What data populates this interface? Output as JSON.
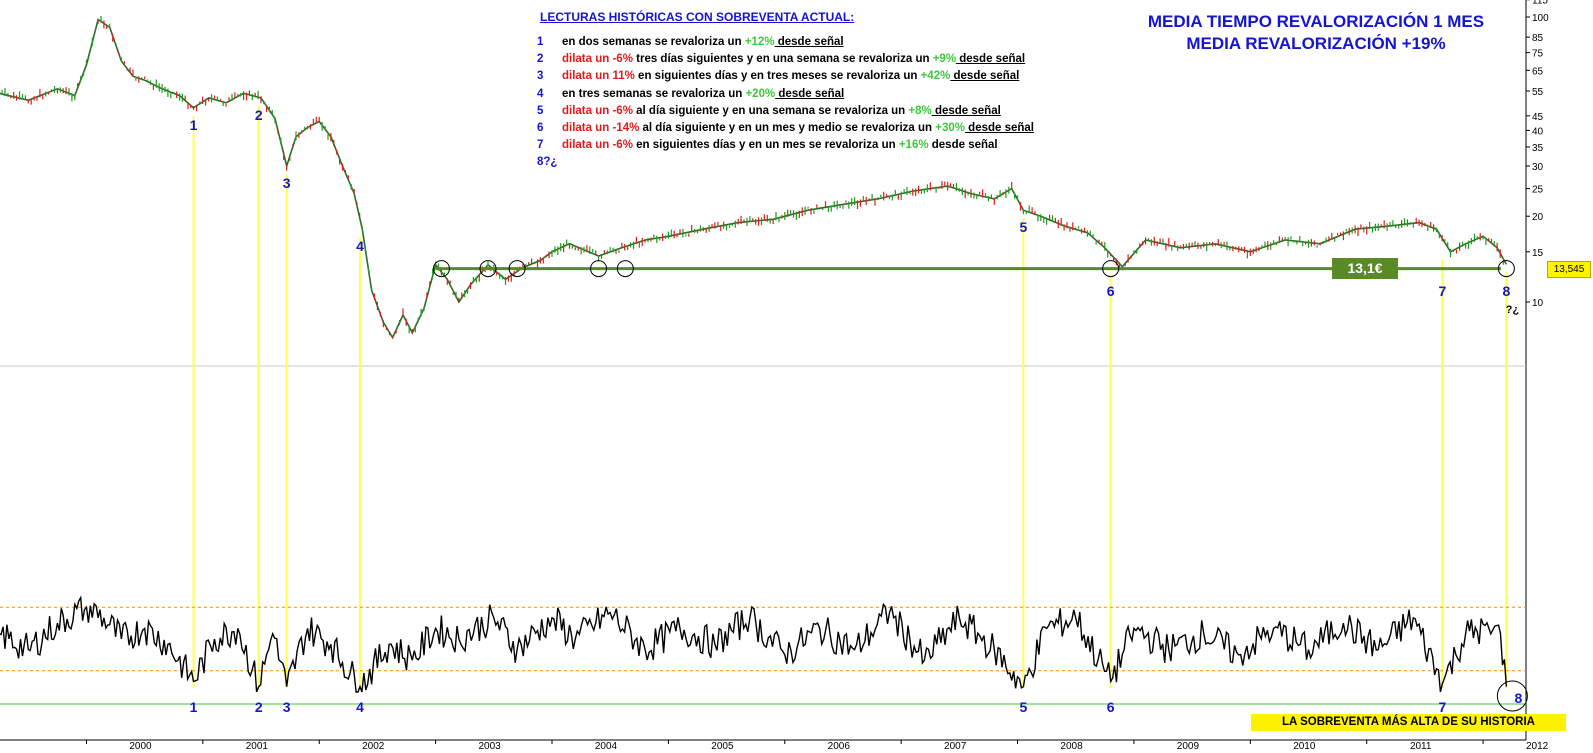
{
  "header": {
    "title_line1": "MEDIA TIEMPO REVALORIZACIÓN 1 MES",
    "title_line2": "MEDIA REVALORIZACIÓN +19%"
  },
  "readings": {
    "title": "LECTURAS HISTÓRICAS CON SOBREVENTA ACTUAL:",
    "items": [
      {
        "num": "1",
        "parts": [
          {
            "text": "en dos semanas se revaloriza un ",
            "style": "black"
          },
          {
            "text": "+12%",
            "style": "green"
          },
          {
            "text": " desde señal",
            "style": "underline"
          }
        ]
      },
      {
        "num": "2",
        "parts": [
          {
            "text": "dilata un -6%",
            "style": "red"
          },
          {
            "text": " tres días siguientes y en una semana se revaloriza un ",
            "style": "black"
          },
          {
            "text": "+9%",
            "style": "green"
          },
          {
            "text": " desde señal",
            "style": "underline"
          }
        ]
      },
      {
        "num": "3",
        "parts": [
          {
            "text": "dilata un 11%",
            "style": "red"
          },
          {
            "text": " en siguientes días y en tres meses se revaloriza un ",
            "style": "black"
          },
          {
            "text": "+42%",
            "style": "green"
          },
          {
            "text": " desde señal",
            "style": "underline"
          }
        ]
      },
      {
        "num": "4",
        "parts": [
          {
            "text": "en tres semanas se revaloriza un ",
            "style": "black"
          },
          {
            "text": "+20%",
            "style": "green"
          },
          {
            "text": " desde señal",
            "style": "underline"
          }
        ]
      },
      {
        "num": "5",
        "parts": [
          {
            "text": "dilata un -6%",
            "style": "red"
          },
          {
            "text": " al día siguiente y en una semana se revaloriza un ",
            "style": "black"
          },
          {
            "text": "+8%",
            "style": "green"
          },
          {
            "text": " desde señal",
            "style": "underline"
          }
        ]
      },
      {
        "num": "6",
        "parts": [
          {
            "text": "dilata un -14%",
            "style": "red"
          },
          {
            "text": " al día siguiente y en un mes y medio se revaloriza un ",
            "style": "black"
          },
          {
            "text": "+30%",
            "style": "green"
          },
          {
            "text": " desde señal",
            "style": "underline"
          }
        ]
      },
      {
        "num": "7",
        "parts": [
          {
            "text": "dilata un -6%",
            "style": "red"
          },
          {
            "text": " en siguientes días y en un mes se revaloriza un ",
            "style": "black"
          },
          {
            "text": "+16%",
            "style": "green"
          },
          {
            "text": " desde señal",
            "style": "black"
          }
        ]
      },
      {
        "num": "8?¿",
        "parts": []
      }
    ]
  },
  "support": {
    "label": "13,1€",
    "value": 13.1
  },
  "last_price": {
    "label": "13,545",
    "value": 13.545
  },
  "bottom_banner": "LA SOBREVENTA MÁS ALTA DE SU HISTORIA",
  "signal_question": "?¿",
  "colors": {
    "signal_number": "#1414d2",
    "signal_line": "#ffff50",
    "support_line": "#5a8a25",
    "oscillator_band": "#ff8c00",
    "oscillator_base": "#3cc93c",
    "candle_up": "#1e9b1e",
    "candle_down": "#dc1e1e"
  },
  "chart_data": [
    {
      "type": "line",
      "scale": "log",
      "ylim": [
        6,
        115
      ],
      "y_ticks": [
        10,
        15,
        20,
        25,
        30,
        35,
        40,
        45,
        55,
        65,
        75,
        85,
        100,
        115
      ],
      "x_ticks": [
        "2000",
        "2001",
        "2002",
        "2003",
        "2004",
        "2005",
        "2006",
        "2007",
        "2008",
        "2009",
        "2010",
        "2011",
        "2012"
      ],
      "x": [
        1999.25,
        1999.5,
        1999.75,
        1999.9,
        2000.0,
        2000.1,
        2000.2,
        2000.3,
        2000.4,
        2000.5,
        2000.65,
        2000.8,
        2000.92,
        2001.05,
        2001.2,
        2001.35,
        2001.5,
        2001.62,
        2001.72,
        2001.8,
        2001.9,
        2002.0,
        2002.1,
        2002.2,
        2002.3,
        2002.37,
        2002.45,
        2002.55,
        2002.63,
        2002.72,
        2002.8,
        2002.9,
        2003.0,
        2003.1,
        2003.2,
        2003.3,
        2003.45,
        2003.6,
        2003.75,
        2003.9,
        2004.0,
        2004.15,
        2004.4,
        2004.6,
        2004.8,
        2005.0,
        2005.3,
        2005.6,
        2005.9,
        2006.2,
        2006.5,
        2006.8,
        2007.1,
        2007.4,
        2007.6,
        2007.8,
        2007.95,
        2008.05,
        2008.2,
        2008.4,
        2008.6,
        2008.75,
        2008.9,
        2009.1,
        2009.4,
        2009.7,
        2010.0,
        2010.3,
        2010.6,
        2010.9,
        2011.2,
        2011.45,
        2011.6,
        2011.72,
        2011.85,
        2012.0,
        2012.12,
        2012.2
      ],
      "y": [
        54,
        51,
        56,
        53,
        68,
        98,
        92,
        70,
        62,
        60,
        56,
        53,
        48,
        52,
        50,
        54,
        52,
        44,
        30,
        38,
        41,
        43,
        38,
        30,
        24,
        18,
        11,
        8.5,
        7.5,
        9,
        7.8,
        9.5,
        13.5,
        12,
        10,
        11.5,
        13.5,
        12,
        13.2,
        14,
        15,
        16,
        14.5,
        15.5,
        16.5,
        17,
        18,
        19,
        19.5,
        21,
        22,
        23,
        24.5,
        25.5,
        24,
        23,
        25,
        21,
        20,
        18.5,
        17.5,
        15.5,
        13.3,
        16.5,
        15.5,
        16,
        15,
        16.5,
        16,
        18,
        18.5,
        19,
        18,
        15,
        16,
        17,
        15.5,
        13.545
      ],
      "annotations": [
        {
          "label": "1",
          "x": 2000.92
        },
        {
          "label": "2",
          "x": 2001.48
        },
        {
          "label": "3",
          "x": 2001.72
        },
        {
          "label": "4",
          "x": 2002.35
        },
        {
          "label": "5",
          "x": 2008.05
        },
        {
          "label": "6",
          "x": 2008.8
        },
        {
          "label": "7",
          "x": 2011.65
        },
        {
          "label": "8",
          "x": 2012.2
        }
      ],
      "circles_x": [
        2003.05,
        2003.45,
        2003.7,
        2004.4,
        2004.63,
        2008.8,
        2012.2
      ],
      "hline": 13.1
    },
    {
      "type": "line",
      "ylim": [
        0,
        100
      ],
      "bands": [
        80,
        20
      ],
      "x": [
        1999.25,
        1999.5,
        1999.75,
        2000.0,
        2000.15,
        2000.3,
        2000.5,
        2000.7,
        2000.92,
        2001.1,
        2001.3,
        2001.48,
        2001.6,
        2001.72,
        2001.9,
        2002.1,
        2002.35,
        2002.6,
        2002.8,
        2003.0,
        2003.2,
        2003.5,
        2003.7,
        2004.0,
        2004.2,
        2004.5,
        2004.8,
        2005.1,
        2005.4,
        2005.7,
        2006.0,
        2006.3,
        2006.6,
        2006.9,
        2007.2,
        2007.5,
        2007.8,
        2008.05,
        2008.25,
        2008.5,
        2008.8,
        2009.0,
        2009.3,
        2009.6,
        2009.9,
        2010.2,
        2010.5,
        2010.8,
        2011.1,
        2011.4,
        2011.65,
        2011.85,
        2012.05,
        2012.15,
        2012.2
      ],
      "y": [
        55,
        40,
        65,
        80,
        70,
        50,
        60,
        45,
        10,
        50,
        60,
        5,
        55,
        5,
        60,
        45,
        5,
        45,
        30,
        60,
        50,
        70,
        40,
        70,
        50,
        75,
        40,
        60,
        45,
        70,
        35,
        60,
        40,
        75,
        30,
        70,
        40,
        5,
        60,
        70,
        10,
        60,
        40,
        55,
        35,
        60,
        40,
        65,
        40,
        70,
        8,
        55,
        60,
        55,
        5
      ],
      "annotations": [
        {
          "label": "1",
          "x": 2000.92
        },
        {
          "label": "2",
          "x": 2001.48
        },
        {
          "label": "3",
          "x": 2001.72
        },
        {
          "label": "4",
          "x": 2002.35
        },
        {
          "label": "5",
          "x": 2008.05
        },
        {
          "label": "6",
          "x": 2008.8
        },
        {
          "label": "7",
          "x": 2011.65
        },
        {
          "label": "8",
          "x": 2012.2
        }
      ]
    }
  ]
}
